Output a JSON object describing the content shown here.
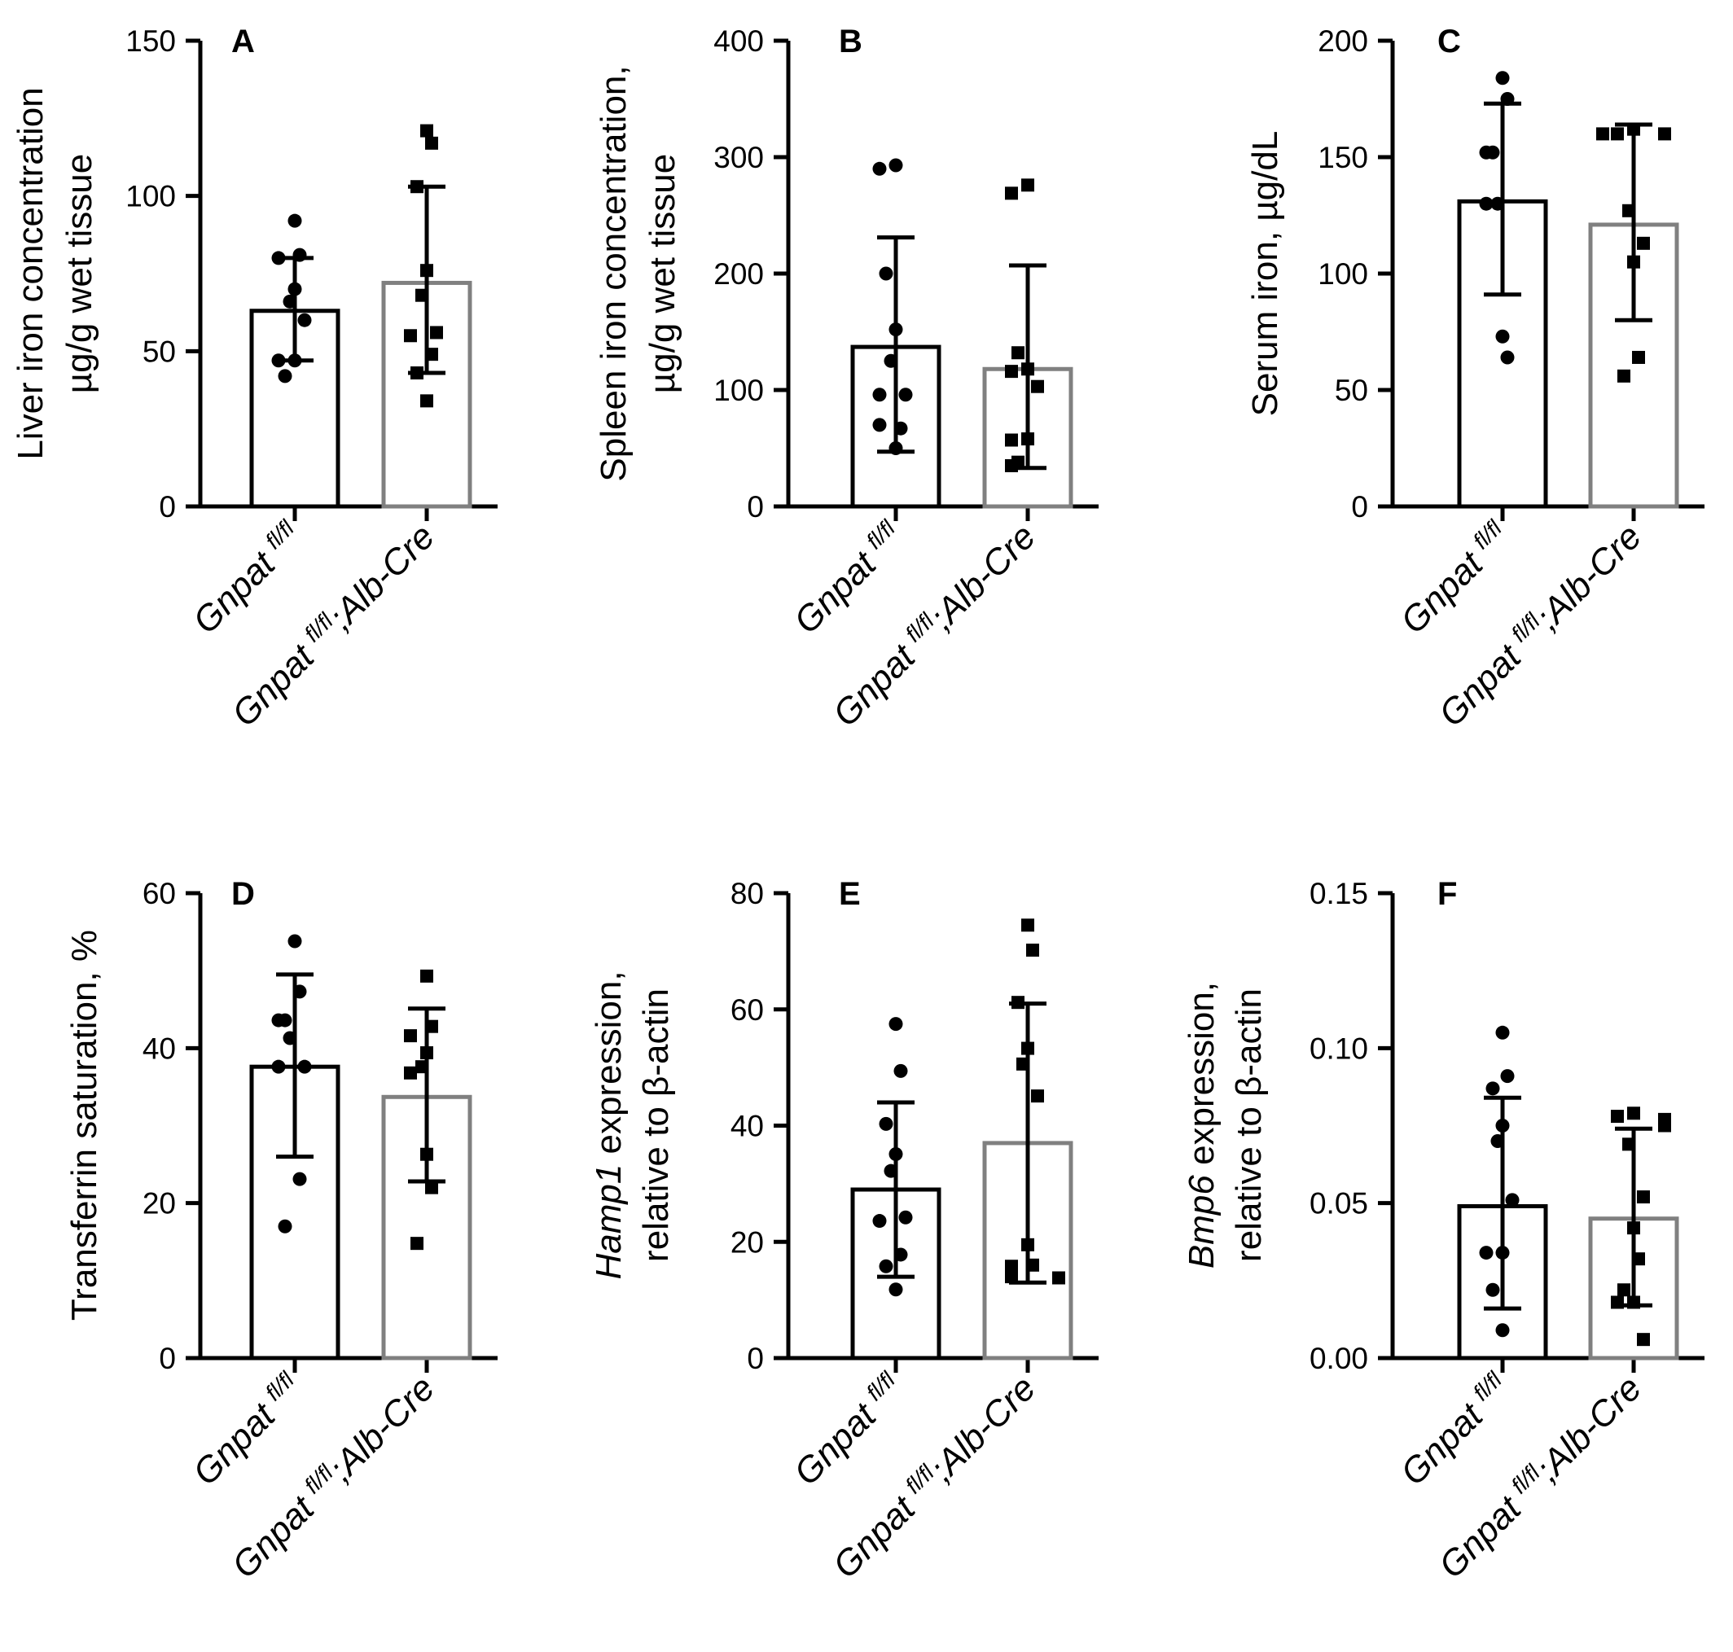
{
  "colors": {
    "control": "#000000",
    "knockout": "#808080",
    "background": "#ffffff"
  },
  "chart_data": [
    {
      "type": "bar",
      "panel": "A",
      "ylabel_lines": [
        [
          {
            "t": "Liver iron concentration",
            "i": false
          }
        ],
        [
          {
            "t": "µg/g wet tissue",
            "i": false
          }
        ]
      ],
      "ylim": [
        0,
        150
      ],
      "yticks": [
        0,
        50,
        100,
        150
      ],
      "ytick_labels": [
        "0",
        "50",
        "100",
        "150"
      ],
      "series": [
        {
          "category": "Gnpat fl/fl",
          "mean": 63,
          "sd_low": 47,
          "sd_high": 80,
          "points": [
            92,
            81,
            80,
            70,
            66,
            60,
            47,
            47,
            42
          ],
          "marker": "circle"
        },
        {
          "category": "Gnpat fl/fl;Alb-Cre",
          "mean": 72,
          "sd_low": 43,
          "sd_high": 103,
          "points": [
            121,
            117,
            103,
            76,
            68,
            56,
            55,
            49,
            43,
            34
          ],
          "marker": "square"
        }
      ]
    },
    {
      "type": "bar",
      "panel": "B",
      "ylabel_lines": [
        [
          {
            "t": "Spleen iron concentration,",
            "i": false
          }
        ],
        [
          {
            "t": "µg/g wet tissue",
            "i": false
          }
        ]
      ],
      "ylim": [
        0,
        400
      ],
      "yticks": [
        0,
        100,
        200,
        300,
        400
      ],
      "ytick_labels": [
        "0",
        "100",
        "200",
        "300",
        "400"
      ],
      "series": [
        {
          "category": "Gnpat fl/fl",
          "mean": 137,
          "sd_low": 47,
          "sd_high": 231,
          "points": [
            293,
            290,
            200,
            152,
            125,
            96,
            96,
            67,
            70,
            50
          ],
          "marker": "circle"
        },
        {
          "category": "Gnpat fl/fl;Alb-Cre",
          "mean": 118,
          "sd_low": 33,
          "sd_high": 207,
          "points": [
            276,
            269,
            132,
            118,
            116,
            103,
            58,
            57,
            38,
            35
          ],
          "marker": "square"
        }
      ]
    },
    {
      "type": "bar",
      "panel": "C",
      "ylabel_lines": [
        [
          {
            "t": "Serum iron, µg/dL",
            "i": false
          }
        ]
      ],
      "ylim": [
        0,
        200
      ],
      "yticks": [
        0,
        50,
        100,
        150,
        200
      ],
      "ytick_labels": [
        "0",
        "50",
        "100",
        "150",
        "200"
      ],
      "series": [
        {
          "category": "Gnpat fl/fl",
          "mean": 131,
          "sd_low": 91,
          "sd_high": 173,
          "points": [
            184,
            175,
            152,
            152,
            130,
            130,
            73,
            64
          ],
          "marker": "circle"
        },
        {
          "category": "Gnpat fl/fl;Alb-Cre",
          "mean": 121,
          "sd_low": 80,
          "sd_high": 164,
          "points": [
            162,
            160,
            160,
            160,
            127,
            113,
            105,
            64,
            56
          ],
          "marker": "square"
        }
      ]
    },
    {
      "type": "bar",
      "panel": "D",
      "ylabel_lines": [
        [
          {
            "t": "Transferrin saturation, %",
            "i": false
          }
        ]
      ],
      "ylim": [
        0,
        60
      ],
      "yticks": [
        0,
        20,
        40,
        60
      ],
      "ytick_labels": [
        "0",
        "20",
        "40",
        "60"
      ],
      "series": [
        {
          "category": "Gnpat fl/fl",
          "mean": 37.6,
          "sd_low": 26,
          "sd_high": 49.5,
          "points": [
            53.8,
            47.3,
            43.6,
            43.6,
            41.3,
            37.6,
            37.6,
            23.1,
            17.0
          ],
          "marker": "circle"
        },
        {
          "category": "Gnpat fl/fl;Alb-Cre",
          "mean": 33.7,
          "sd_low": 22.8,
          "sd_high": 45.1,
          "points": [
            49.3,
            42.8,
            41.6,
            39.4,
            37.6,
            36.8,
            26.3,
            22.0,
            14.8
          ],
          "marker": "square"
        }
      ]
    },
    {
      "type": "bar",
      "panel": "E",
      "ylabel_lines": [
        [
          {
            "t": "Hamp1",
            "i": true
          },
          {
            "t": " expression,",
            "i": false
          }
        ],
        [
          {
            "t": "relative to β-actin",
            "i": false
          }
        ]
      ],
      "ylim": [
        0,
        80
      ],
      "yticks": [
        0,
        20,
        40,
        60,
        80
      ],
      "ytick_labels": [
        "0",
        "20",
        "40",
        "60",
        "80"
      ],
      "series": [
        {
          "category": "Gnpat fl/fl",
          "mean": 29,
          "sd_low": 14,
          "sd_high": 44,
          "points": [
            57.5,
            49.4,
            40.3,
            35.1,
            32.2,
            24.2,
            23.6,
            17.8,
            15.8,
            11.8
          ],
          "marker": "circle"
        },
        {
          "category": "Gnpat fl/fl;Alb-Cre",
          "mean": 37,
          "sd_low": 13,
          "sd_high": 61,
          "points": [
            74.5,
            70.2,
            61.2,
            53.3,
            50.6,
            45.1,
            19.5,
            16.0,
            15.8,
            14.2,
            14.0,
            13.8
          ],
          "marker": "square"
        }
      ]
    },
    {
      "type": "bar",
      "panel": "F",
      "ylabel_lines": [
        [
          {
            "t": "Bmp6",
            "i": true
          },
          {
            "t": " expression,",
            "i": false
          }
        ],
        [
          {
            "t": "relative to β-actin",
            "i": false
          }
        ]
      ],
      "ylim": [
        0,
        0.15
      ],
      "yticks": [
        0,
        0.05,
        0.1,
        0.15
      ],
      "ytick_labels": [
        "0.00",
        "0.05",
        "0.10",
        "0.15"
      ],
      "series": [
        {
          "category": "Gnpat fl/fl",
          "mean": 0.049,
          "sd_low": 0.016,
          "sd_high": 0.084,
          "points": [
            0.105,
            0.091,
            0.087,
            0.075,
            0.07,
            0.051,
            0.034,
            0.034,
            0.022,
            0.009
          ],
          "marker": "circle"
        },
        {
          "category": "Gnpat fl/fl;Alb-Cre",
          "mean": 0.045,
          "sd_low": 0.017,
          "sd_high": 0.074,
          "points": [
            0.079,
            0.078,
            0.077,
            0.075,
            0.069,
            0.052,
            0.042,
            0.032,
            0.022,
            0.018,
            0.018,
            0.006
          ],
          "marker": "square"
        }
      ]
    }
  ],
  "category_labels": {
    "control": {
      "base": "Gnpat",
      "sup": "fl/fl",
      "suffix": ""
    },
    "knockout": {
      "base": "Gnpat",
      "sup": "fl/fl",
      "suffix": ";Alb-Cre"
    }
  }
}
